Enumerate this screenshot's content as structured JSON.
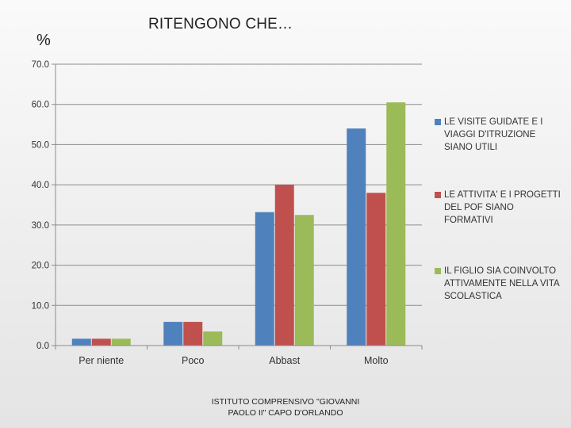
{
  "chart_data": {
    "type": "bar",
    "title": "RITENGONO CHE…",
    "ylabel": "%",
    "xlabel": "",
    "categories": [
      "Per niente",
      "Poco",
      "Abbast",
      "Molto"
    ],
    "ylim": [
      0,
      70
    ],
    "yticks": [
      "0.0",
      "10.0",
      "20.0",
      "30.0",
      "40.0",
      "50.0",
      "60.0",
      "70.0"
    ],
    "ytick_values": [
      0,
      10,
      20,
      30,
      40,
      50,
      60,
      70
    ],
    "grid": true,
    "legend_position": "right",
    "series": [
      {
        "name": "LE VISITE GUIDATE E I VIAGGI D'ITRUZIONE SIANO UTILI",
        "color": "#4f81bd",
        "values": [
          1.7,
          5.9,
          33.2,
          54.0
        ]
      },
      {
        "name": "LE ATTIVITA' E I PROGETTI DEL POF SIANO FORMATIVI",
        "color": "#c0504d",
        "values": [
          1.7,
          5.9,
          40.0,
          38.0
        ]
      },
      {
        "name": "IL FIGLIO SIA COINVOLTO ATTIVAMENTE NELLA VITA SCOLASTICA",
        "color": "#9bbb59",
        "values": [
          1.7,
          3.5,
          32.5,
          60.5
        ]
      }
    ]
  },
  "footer": {
    "line1": "ISTITUTO COMPRENSIVO \"GIOVANNI",
    "line2": "PAOLO II\" CAPO D'ORLANDO"
  }
}
